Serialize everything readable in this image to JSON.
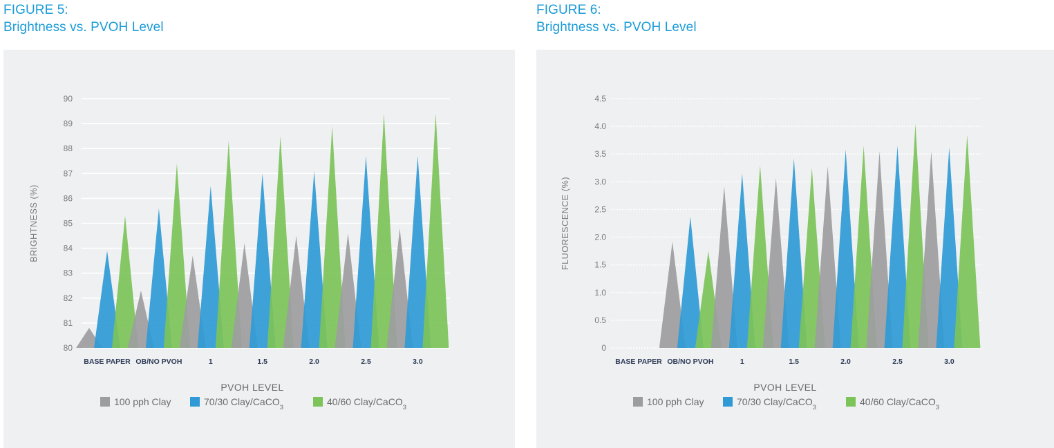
{
  "colors": {
    "title_blue": "#1a9bd7",
    "gray_series": "#9d9d9f",
    "blue_series": "#2f9ad6",
    "green_series": "#7cc359",
    "panel_bg": "#eff0f2"
  },
  "figures": [
    {
      "figure_label": "FIGURE 5:",
      "title": "Brightness vs. PVOH Level"
    },
    {
      "figure_label": "FIGURE 6:",
      "title": "Brightness vs. PVOH Level"
    }
  ],
  "chart_data": [
    {
      "type": "bar",
      "title": "Brightness vs. PVOH Level",
      "xlabel": "PVOH LEVEL",
      "ylabel": "BRIGHTNESS (%)",
      "ylim": [
        80,
        90
      ],
      "yticks": [
        "80",
        "81",
        "82",
        "83",
        "84",
        "85",
        "86",
        "87",
        "88",
        "89",
        "90"
      ],
      "categories": [
        "BASE PAPER",
        "OB/NO PVOH",
        "1",
        "1.5",
        "2.0",
        "2.5",
        "3.0"
      ],
      "grid": true,
      "legend_position": "bottom",
      "series": [
        {
          "name": "100 pph Clay",
          "name_sub": "",
          "color": "#9d9d9f",
          "values": [
            80.8,
            82.3,
            83.7,
            84.2,
            84.5,
            84.6,
            84.8
          ]
        },
        {
          "name": "70/30 Clay/CaCO",
          "name_sub": "3",
          "color": "#2f9ad6",
          "values": [
            83.9,
            85.6,
            86.5,
            87.0,
            87.1,
            87.7,
            87.7
          ]
        },
        {
          "name": "40/60 Clay/CaCO",
          "name_sub": "3",
          "color": "#7cc359",
          "values": [
            85.3,
            87.4,
            88.3,
            88.5,
            88.9,
            89.4,
            89.4
          ]
        }
      ]
    },
    {
      "type": "bar",
      "title": "Brightness vs. PVOH Level",
      "xlabel": "PVOH LEVEL",
      "ylabel": "FLUORESCENCE (%)",
      "ylim": [
        0,
        4.5
      ],
      "yticks": [
        "0",
        "0.5",
        "1.0",
        "1.5",
        "2.0",
        "2.5",
        "3.0",
        "3.5",
        "4.0",
        "4.5"
      ],
      "categories": [
        "BASE PAPER",
        "OB/NO PVOH",
        "1",
        "1.5",
        "2.0",
        "2.5",
        "3.0"
      ],
      "grid": true,
      "legend_position": "bottom",
      "series": [
        {
          "name": "100 pph Clay",
          "name_sub": "",
          "color": "#9d9d9f",
          "values": [
            0,
            1.92,
            2.92,
            3.07,
            3.28,
            3.55,
            3.55
          ]
        },
        {
          "name": "70/30 Clay/CaCO",
          "name_sub": "3",
          "color": "#2f9ad6",
          "values": [
            0,
            2.37,
            3.15,
            3.42,
            3.58,
            3.65,
            3.62
          ]
        },
        {
          "name": "40/60 Clay/CaCO",
          "name_sub": "3",
          "color": "#7cc359",
          "values": [
            0,
            1.75,
            3.3,
            3.25,
            3.65,
            4.05,
            3.85
          ]
        }
      ]
    }
  ]
}
